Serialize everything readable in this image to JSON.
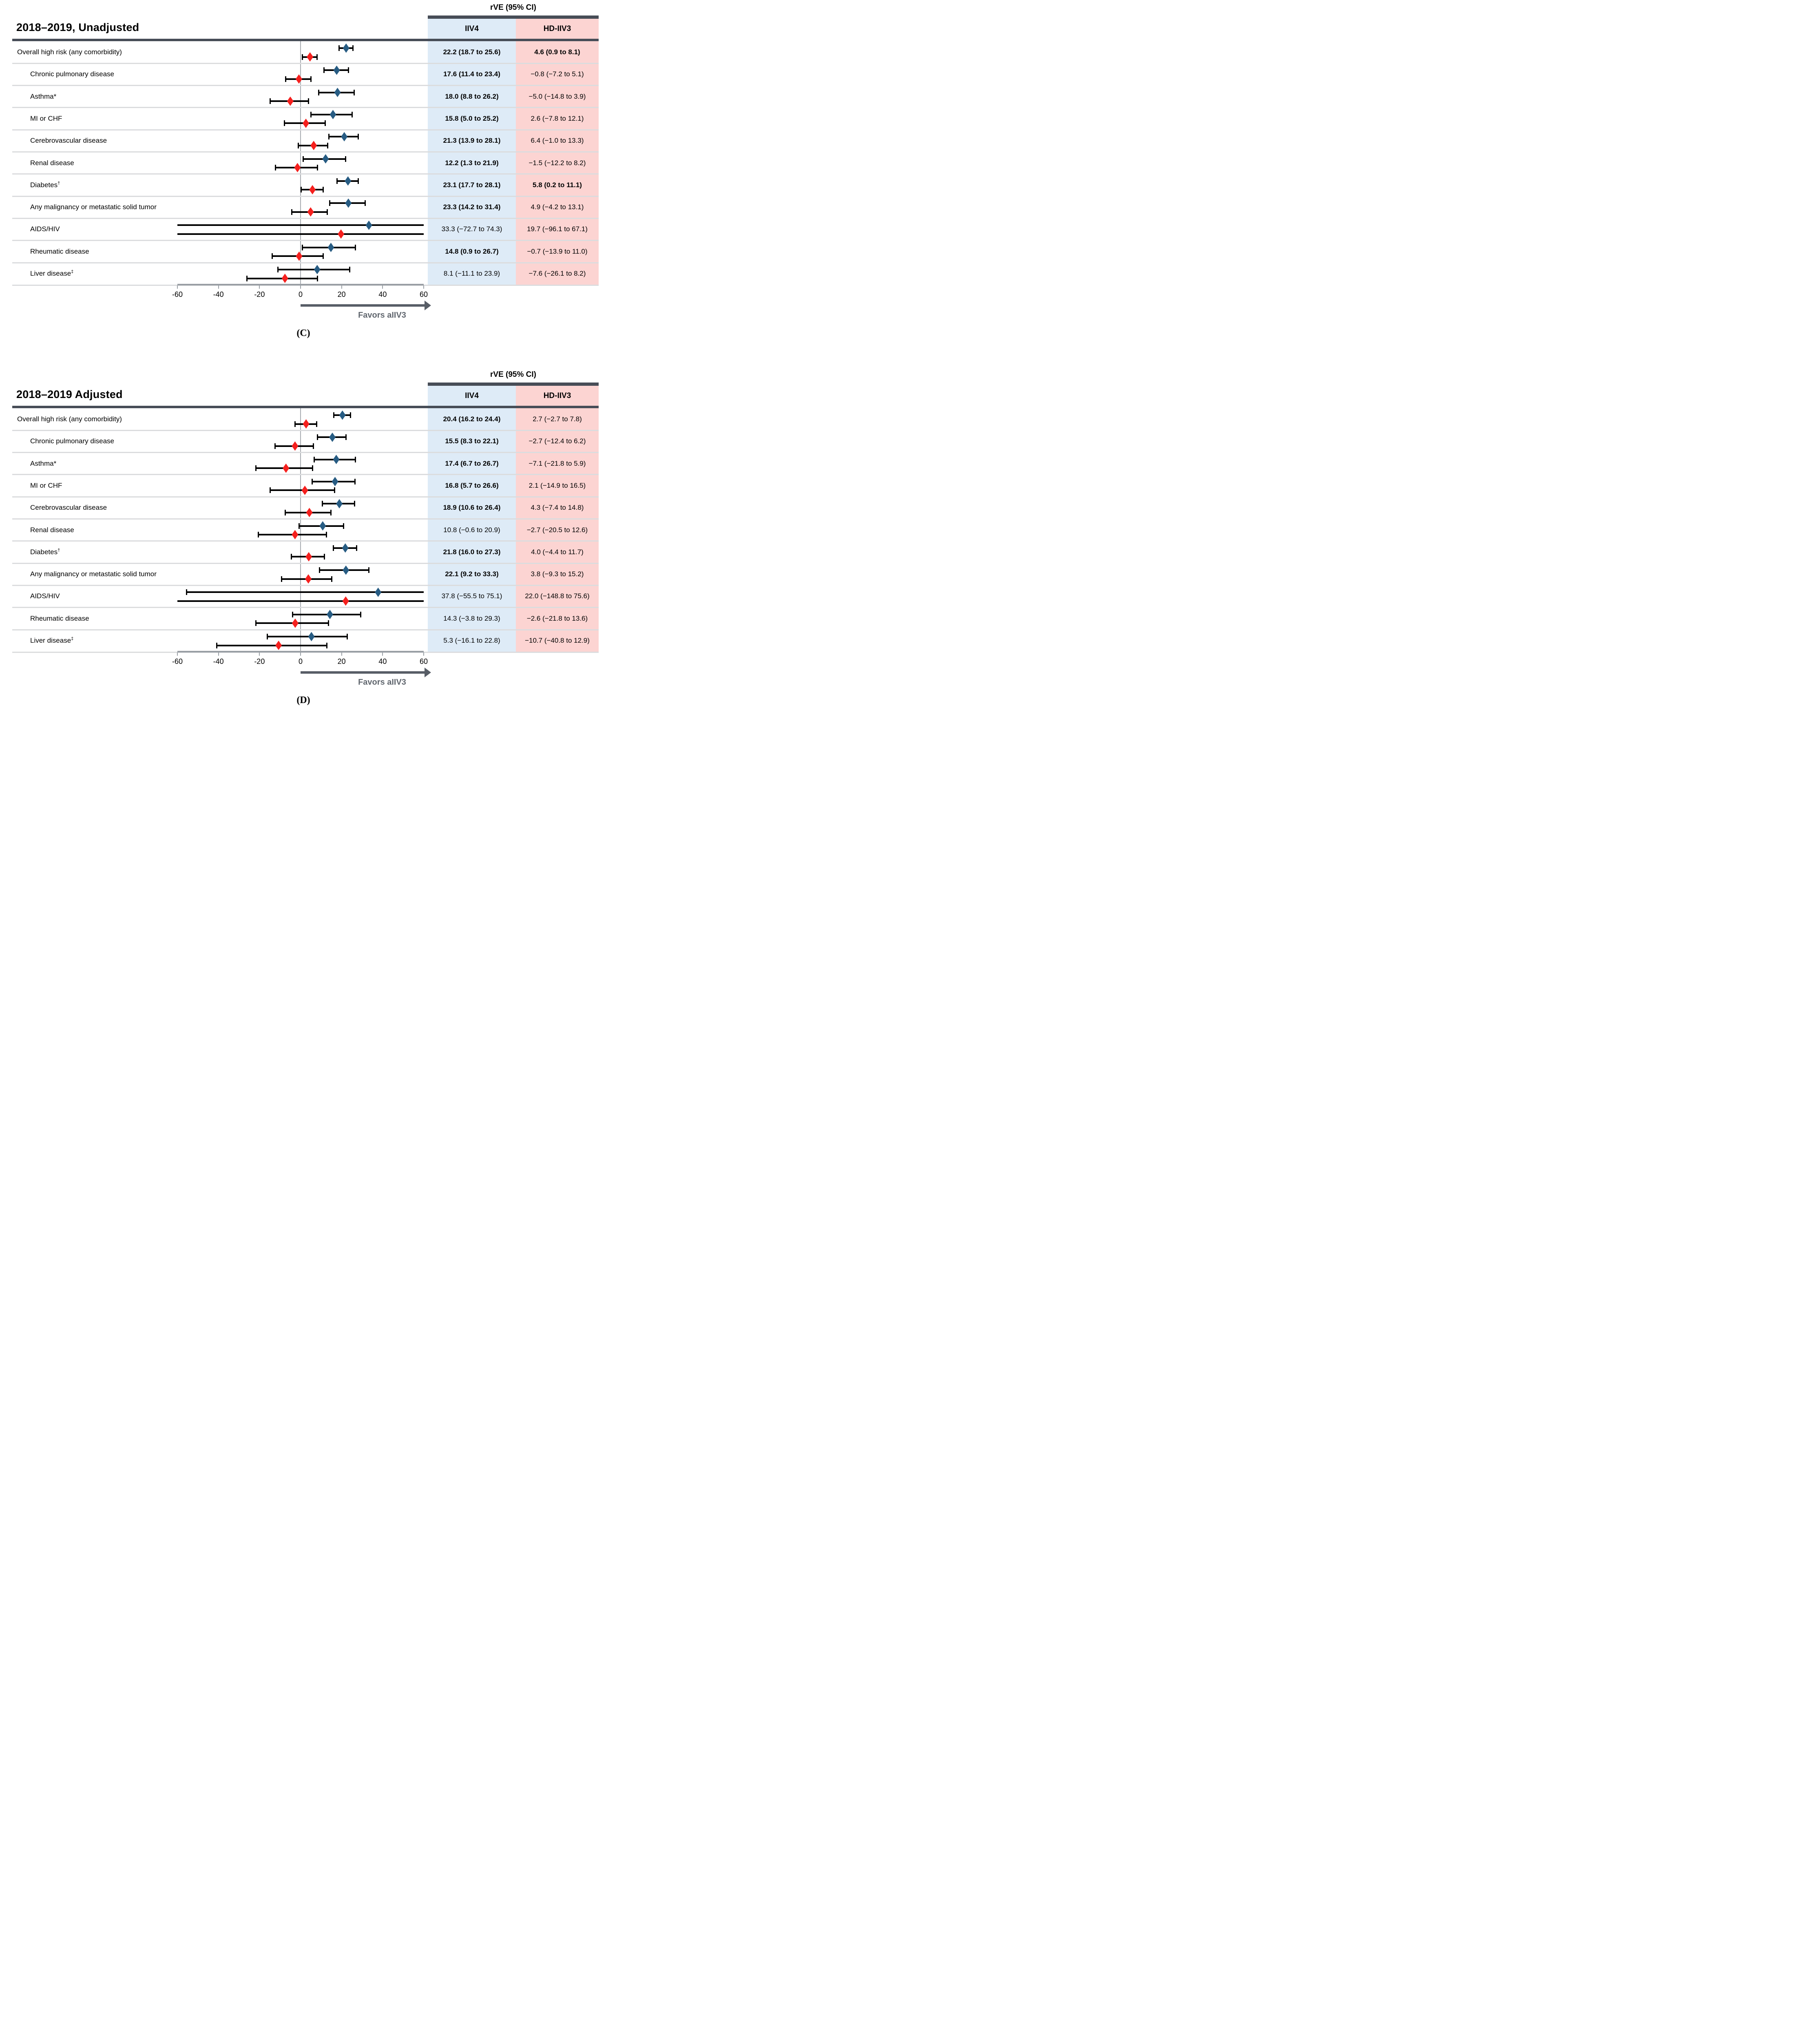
{
  "colors": {
    "iiv4_marker": "#275C83",
    "hd_marker": "#F5201E",
    "iiv4_col_bg": "#DEEBF7",
    "hd_col_bg": "#FCD4D2",
    "header_bar": "#474D57",
    "separator": "#DBDCDE",
    "axis_bar": "#999EA4",
    "tick": "#9AA0A6",
    "zero_line": "#A7ABB0",
    "arrow": "#575D66",
    "favors_text": "#60666E"
  },
  "chart_data": [
    {
      "type": "scatter",
      "subtype": "forest-plot",
      "panel_letter": "(C)",
      "title": "2018–2019, Unadjusted",
      "value_header": "rVE (95% CI)",
      "series_names": [
        "IIV4",
        "HD-IIV3"
      ],
      "xlim": [
        -60,
        60
      ],
      "xticks": [
        -60,
        -40,
        -20,
        0,
        20,
        40,
        60
      ],
      "xtick_labels": [
        "-60",
        "-40",
        "-20",
        "0",
        "20",
        "40",
        "60"
      ],
      "arrow_label": "Favors aIIV3",
      "categories": [
        "Overall high risk (any comorbidity)",
        "Chronic pulmonary disease",
        "Asthma*",
        "MI or CHF",
        "Cerebrovascular disease",
        "Renal disease",
        "Diabetes†",
        "Any malignancy or metastatic solid tumor",
        "AIDS/HIV",
        "Rheumatic disease",
        "Liver disease‡"
      ],
      "rows": [
        {
          "label": "Overall high risk (any comorbidity)",
          "sup": "",
          "indent": false,
          "IIV4": {
            "est": 22.2,
            "lo": 18.7,
            "hi": 25.6,
            "label": "22.2 (18.7 to 25.6)",
            "bold": true
          },
          "HD_IIV3": {
            "est": 4.6,
            "lo": 0.9,
            "hi": 8.1,
            "label": "4.6 (0.9 to 8.1)",
            "bold": true
          }
        },
        {
          "label": "Chronic pulmonary disease",
          "sup": "",
          "indent": true,
          "IIV4": {
            "est": 17.6,
            "lo": 11.4,
            "hi": 23.4,
            "label": "17.6 (11.4 to 23.4)",
            "bold": true
          },
          "HD_IIV3": {
            "est": -0.8,
            "lo": -7.2,
            "hi": 5.1,
            "label": "−0.8 (−7.2 to 5.1)",
            "bold": false
          }
        },
        {
          "label": "Asthma*",
          "sup": "",
          "indent": true,
          "IIV4": {
            "est": 18.0,
            "lo": 8.8,
            "hi": 26.2,
            "label": "18.0 (8.8 to 26.2)",
            "bold": true
          },
          "HD_IIV3": {
            "est": -5.0,
            "lo": -14.8,
            "hi": 3.9,
            "label": "−5.0 (−14.8 to 3.9)",
            "bold": false
          }
        },
        {
          "label": "MI or CHF",
          "sup": "",
          "indent": true,
          "IIV4": {
            "est": 15.8,
            "lo": 5.0,
            "hi": 25.2,
            "label": "15.8 (5.0 to 25.2)",
            "bold": true
          },
          "HD_IIV3": {
            "est": 2.6,
            "lo": -7.8,
            "hi": 12.1,
            "label": "2.6 (−7.8 to 12.1)",
            "bold": false
          }
        },
        {
          "label": "Cerebrovascular disease",
          "sup": "",
          "indent": true,
          "IIV4": {
            "est": 21.3,
            "lo": 13.9,
            "hi": 28.1,
            "label": "21.3 (13.9 to 28.1)",
            "bold": true
          },
          "HD_IIV3": {
            "est": 6.4,
            "lo": -1.0,
            "hi": 13.3,
            "label": "6.4 (−1.0 to 13.3)",
            "bold": false
          }
        },
        {
          "label": "Renal disease",
          "sup": "",
          "indent": true,
          "IIV4": {
            "est": 12.2,
            "lo": 1.3,
            "hi": 21.9,
            "label": "12.2 (1.3 to 21.9)",
            "bold": true
          },
          "HD_IIV3": {
            "est": -1.5,
            "lo": -12.2,
            "hi": 8.2,
            "label": "−1.5 (−12.2 to 8.2)",
            "bold": false
          }
        },
        {
          "label": "Diabetes",
          "sup": "†",
          "indent": true,
          "IIV4": {
            "est": 23.1,
            "lo": 17.7,
            "hi": 28.1,
            "label": "23.1 (17.7 to 28.1)",
            "bold": true
          },
          "HD_IIV3": {
            "est": 5.8,
            "lo": 0.2,
            "hi": 11.1,
            "label": "5.8 (0.2 to 11.1)",
            "bold": true
          }
        },
        {
          "label": "Any malignancy or metastatic solid tumor",
          "sup": "",
          "indent": true,
          "IIV4": {
            "est": 23.3,
            "lo": 14.2,
            "hi": 31.4,
            "label": "23.3 (14.2 to 31.4)",
            "bold": true
          },
          "HD_IIV3": {
            "est": 4.9,
            "lo": -4.2,
            "hi": 13.1,
            "label": "4.9 (−4.2 to 13.1)",
            "bold": false
          }
        },
        {
          "label": "AIDS/HIV",
          "sup": "",
          "indent": true,
          "IIV4": {
            "est": 33.3,
            "lo": -72.7,
            "hi": 74.3,
            "label": "33.3 (−72.7 to 74.3)",
            "bold": false
          },
          "HD_IIV3": {
            "est": 19.7,
            "lo": -96.1,
            "hi": 67.1,
            "label": "19.7 (−96.1 to 67.1)",
            "bold": false
          }
        },
        {
          "label": "Rheumatic disease",
          "sup": "",
          "indent": true,
          "IIV4": {
            "est": 14.8,
            "lo": 0.9,
            "hi": 26.7,
            "label": "14.8 (0.9 to 26.7)",
            "bold": true
          },
          "HD_IIV3": {
            "est": -0.7,
            "lo": -13.9,
            "hi": 11.0,
            "label": "−0.7 (−13.9 to 11.0)",
            "bold": false
          }
        },
        {
          "label": "Liver disease",
          "sup": "‡",
          "indent": true,
          "IIV4": {
            "est": 8.1,
            "lo": -11.1,
            "hi": 23.9,
            "label": "8.1 (−11.1 to 23.9)",
            "bold": false
          },
          "HD_IIV3": {
            "est": -7.6,
            "lo": -26.1,
            "hi": 8.2,
            "label": "−7.6 (−26.1 to 8.2)",
            "bold": false
          }
        }
      ]
    },
    {
      "type": "scatter",
      "subtype": "forest-plot",
      "panel_letter": "(D)",
      "title": "2018–2019 Adjusted",
      "value_header": "rVE (95% CI)",
      "series_names": [
        "IIV4",
        "HD-IIV3"
      ],
      "xlim": [
        -60,
        60
      ],
      "xticks": [
        -60,
        -40,
        -20,
        0,
        20,
        40,
        60
      ],
      "xtick_labels": [
        "-60",
        "-40",
        "-20",
        "0",
        "20",
        "40",
        "60"
      ],
      "arrow_label": "Favors aIIV3",
      "categories": [
        "Overall high risk (any comorbidity)",
        "Chronic pulmonary disease",
        "Asthma*",
        "MI or CHF",
        "Cerebrovascular disease",
        "Renal disease",
        "Diabetes†",
        "Any malignancy or metastatic solid tumor",
        "AIDS/HIV",
        "Rheumatic disease",
        "Liver disease‡"
      ],
      "rows": [
        {
          "label": "Overall high risk (any comorbidity)",
          "sup": "",
          "indent": false,
          "IIV4": {
            "est": 20.4,
            "lo": 16.2,
            "hi": 24.4,
            "label": "20.4 (16.2 to 24.4)",
            "bold": true
          },
          "HD_IIV3": {
            "est": 2.7,
            "lo": -2.7,
            "hi": 7.8,
            "label": "2.7 (−2.7 to 7.8)",
            "bold": false
          }
        },
        {
          "label": "Chronic pulmonary disease",
          "sup": "",
          "indent": true,
          "IIV4": {
            "est": 15.5,
            "lo": 8.3,
            "hi": 22.1,
            "label": "15.5 (8.3 to 22.1)",
            "bold": true
          },
          "HD_IIV3": {
            "est": -2.7,
            "lo": -12.4,
            "hi": 6.2,
            "label": "−2.7 (−12.4 to 6.2)",
            "bold": false
          }
        },
        {
          "label": "Asthma*",
          "sup": "",
          "indent": true,
          "IIV4": {
            "est": 17.4,
            "lo": 6.7,
            "hi": 26.7,
            "label": "17.4 (6.7 to 26.7)",
            "bold": true
          },
          "HD_IIV3": {
            "est": -7.1,
            "lo": -21.8,
            "hi": 5.9,
            "label": "−7.1 (−21.8 to 5.9)",
            "bold": false
          }
        },
        {
          "label": "MI or CHF",
          "sup": "",
          "indent": true,
          "IIV4": {
            "est": 16.8,
            "lo": 5.7,
            "hi": 26.6,
            "label": "16.8 (5.7 to 26.6)",
            "bold": true
          },
          "HD_IIV3": {
            "est": 2.1,
            "lo": -14.9,
            "hi": 16.5,
            "label": "2.1 (−14.9 to 16.5)",
            "bold": false
          }
        },
        {
          "label": "Cerebrovascular disease",
          "sup": "",
          "indent": true,
          "IIV4": {
            "est": 18.9,
            "lo": 10.6,
            "hi": 26.4,
            "label": "18.9 (10.6 to 26.4)",
            "bold": true
          },
          "HD_IIV3": {
            "est": 4.3,
            "lo": -7.4,
            "hi": 14.8,
            "label": "4.3 (−7.4 to 14.8)",
            "bold": false
          }
        },
        {
          "label": "Renal disease",
          "sup": "",
          "indent": true,
          "IIV4": {
            "est": 10.8,
            "lo": -0.6,
            "hi": 20.9,
            "label": "10.8 (−0.6 to 20.9)",
            "bold": false
          },
          "HD_IIV3": {
            "est": -2.7,
            "lo": -20.5,
            "hi": 12.6,
            "label": "−2.7 (−20.5 to 12.6)",
            "bold": false
          }
        },
        {
          "label": "Diabetes",
          "sup": "†",
          "indent": true,
          "IIV4": {
            "est": 21.8,
            "lo": 16.0,
            "hi": 27.3,
            "label": "21.8 (16.0 to 27.3)",
            "bold": true
          },
          "HD_IIV3": {
            "est": 4.0,
            "lo": -4.4,
            "hi": 11.7,
            "label": "4.0 (−4.4 to 11.7)",
            "bold": false
          }
        },
        {
          "label": "Any malignancy or metastatic solid tumor",
          "sup": "",
          "indent": true,
          "IIV4": {
            "est": 22.1,
            "lo": 9.2,
            "hi": 33.3,
            "label": "22.1 (9.2 to 33.3)",
            "bold": true
          },
          "HD_IIV3": {
            "est": 3.8,
            "lo": -9.3,
            "hi": 15.2,
            "label": "3.8 (−9.3 to 15.2)",
            "bold": false
          }
        },
        {
          "label": "AIDS/HIV",
          "sup": "",
          "indent": true,
          "IIV4": {
            "est": 37.8,
            "lo": -55.5,
            "hi": 75.1,
            "label": "37.8 (−55.5 to 75.1)",
            "bold": false
          },
          "HD_IIV3": {
            "est": 22.0,
            "lo": -148.8,
            "hi": 75.6,
            "label": "22.0 (−148.8 to 75.6)",
            "bold": false
          }
        },
        {
          "label": "Rheumatic disease",
          "sup": "",
          "indent": true,
          "IIV4": {
            "est": 14.3,
            "lo": -3.8,
            "hi": 29.3,
            "label": "14.3 (−3.8 to 29.3)",
            "bold": false
          },
          "HD_IIV3": {
            "est": -2.6,
            "lo": -21.8,
            "hi": 13.6,
            "label": "−2.6 (−21.8 to 13.6)",
            "bold": false
          }
        },
        {
          "label": "Liver disease",
          "sup": "‡",
          "indent": true,
          "IIV4": {
            "est": 5.3,
            "lo": -16.1,
            "hi": 22.8,
            "label": "5.3 (−16.1 to 22.8)",
            "bold": false
          },
          "HD_IIV3": {
            "est": -10.7,
            "lo": -40.8,
            "hi": 12.9,
            "label": "−10.7 (−40.8 to 12.9)",
            "bold": false
          }
        }
      ]
    }
  ]
}
